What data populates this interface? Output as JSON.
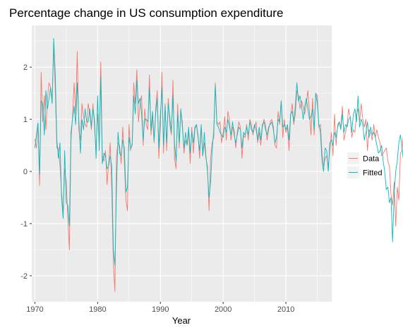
{
  "chart_data": {
    "type": "line",
    "title": "Percentage change in US consumption expenditure",
    "xlabel": "Year",
    "ylabel": "",
    "xlim": [
      1969.5,
      2017.3
    ],
    "ylim": [
      -2.5,
      2.8
    ],
    "x_ticks": [
      1970,
      1980,
      1990,
      2000,
      2010
    ],
    "y_ticks": [
      -2,
      -1,
      0,
      1,
      2
    ],
    "grid": true,
    "legend_position": "right",
    "colors": {
      "panel_background": "#ebebeb",
      "grid": "#ffffff",
      "Data": "#f8766d",
      "Fitted": "#00bfc4"
    },
    "x_start": 1970.0,
    "x_step": 0.25,
    "series": [
      {
        "name": "Data",
        "values": [
          0.62,
          0.45,
          0.87,
          -0.27,
          1.9,
          0.95,
          1.45,
          0.8,
          1.4,
          1.7,
          1.62,
          1.35,
          2.4,
          1.55,
          0.45,
          0.45,
          0.12,
          -0.4,
          -0.8,
          0.05,
          -0.2,
          -0.9,
          -1.5,
          0.6,
          1.05,
          1.7,
          1.1,
          2.3,
          0.8,
          0.6,
          1.3,
          1.05,
          0.9,
          0.85,
          1.3,
          1.1,
          0.8,
          1.3,
          0.85,
          0.4,
          1.1,
          0.55,
          2.1,
          0.3,
          0.2,
          0.4,
          -0.25,
          0.15,
          0.55,
          -0.35,
          -1.75,
          -2.3,
          0.3,
          0.55,
          0.5,
          0.15,
          0.85,
          0.2,
          -0.55,
          -0.75,
          0.9,
          0.4,
          0.55,
          1.7,
          1.3,
          1.95,
          0.95,
          1.3,
          1.45,
          0.5,
          1.2,
          0.9,
          0.8,
          1.85,
          0.7,
          1.05,
          0.55,
          1.2,
          1.55,
          0.25,
          0.85,
          1.9,
          0.35,
          1.3,
          0.4,
          1.4,
          0.9,
          0.7,
          1.75,
          0.25,
          0.05,
          1.3,
          0.45,
          1.15,
          0.95,
          0.35,
          0.6,
          0.5,
          0.75,
          0.15,
          0.85,
          0.35,
          0.8,
          0.9,
          0.7,
          0.25,
          0.85,
          0.3,
          0.55,
          0.25,
          0.1,
          -0.75,
          0.25,
          0.55,
          0.65,
          1.7,
          0.95,
          0.9,
          0.95,
          0.55,
          0.75,
          1.05,
          0.6,
          1.15,
          1.0,
          0.6,
          0.85,
          0.8,
          0.45,
          0.75,
          0.95,
          0.85,
          0.25,
          0.7,
          0.65,
          0.9,
          0.6,
          1.0,
          0.9,
          0.7,
          0.85,
          0.95,
          0.55,
          0.75,
          0.5,
          0.85,
          1.0,
          0.9,
          0.6,
          0.8,
          0.95,
          1.0,
          0.85,
          0.5,
          0.45,
          1.15,
          0.9,
          1.35,
          0.65,
          1.0,
          0.75,
          0.85,
          0.4,
          1.05,
          1.3,
          0.9,
          1.1,
          1.55,
          1.45,
          1.2,
          1.35,
          1.25,
          1.1,
          1.3,
          1.55,
          1.15,
          0.7,
          1.4,
          0.7,
          1.5,
          1.45,
          0.85,
          0.9,
          0.35,
          0.1,
          0.25,
          0.3,
          0.1,
          0.4,
          0.75,
          0.3,
          1.1,
          0.5,
          0.9,
          0.95,
          0.85,
          1.25,
          0.6,
          0.75,
          0.9,
          1.2,
          1.05,
          0.65,
          0.8,
          0.75,
          1.1,
          1.2,
          0.95,
          1.3,
          1.0,
          0.85,
          1.0,
          0.4,
          0.8,
          0.75,
          0.6,
          0.9,
          0.65,
          0.8,
          0.65,
          0.55,
          0.3,
          0.35,
          0.4,
          0.45,
          0.2,
          0.1,
          -0.45,
          -0.65,
          -0.2,
          -1.05,
          -0.3,
          -0.55,
          0.35,
          0.4,
          0.75,
          0.55,
          0.15,
          0.3,
          0.45,
          0.6,
          0.3,
          0.65,
          0.75,
          0.6,
          0.3,
          0.55,
          0.2,
          0.35,
          0.5,
          0.45,
          0.3,
          0.55,
          0.4,
          0.6,
          0.45,
          0.75,
          0.5,
          0.7,
          0.65,
          0.9,
          0.75,
          0.65,
          0.7,
          0.6,
          0.75,
          0.45,
          0.9,
          0.65,
          0.75,
          0.4,
          1.05,
          0.7,
          0.85
        ]
      },
      {
        "name": "Fitted",
        "values": [
          0.45,
          0.72,
          0.93,
          -0.05,
          1.35,
          1.3,
          0.7,
          1.55,
          1.2,
          1.4,
          1.6,
          1.3,
          2.55,
          1.85,
          0.6,
          0.25,
          0.55,
          -0.5,
          -0.9,
          0.4,
          -0.6,
          -0.65,
          -1.05,
          0.75,
          1.0,
          1.25,
          0.9,
          1.7,
          1.0,
          0.35,
          1.0,
          0.8,
          1.2,
          0.95,
          0.95,
          1.2,
          0.85,
          1.2,
          1.0,
          0.25,
          1.45,
          0.4,
          1.8,
          0.15,
          0.35,
          0.3,
          0.05,
          0.1,
          0.3,
          0.1,
          -1.5,
          -1.8,
          -0.35,
          0.75,
          0.35,
          0.3,
          0.6,
          0.45,
          -0.4,
          -0.3,
          0.65,
          0.45,
          0.5,
          1.45,
          1.1,
          1.75,
          1.3,
          1.4,
          1.1,
          0.6,
          1.0,
          1.0,
          0.95,
          1.6,
          0.8,
          1.15,
          0.6,
          1.1,
          1.4,
          0.45,
          1.1,
          1.6,
          0.5,
          1.25,
          0.55,
          1.3,
          1.05,
          0.75,
          1.45,
          0.55,
          0.2,
          1.1,
          0.55,
          1.2,
          0.85,
          0.45,
          0.75,
          0.5,
          0.85,
          0.35,
          0.75,
          0.55,
          0.85,
          0.9,
          0.65,
          0.4,
          0.9,
          0.3,
          0.75,
          0.3,
          0.0,
          -0.5,
          -0.2,
          0.4,
          0.8,
          1.65,
          0.9,
          0.85,
          0.75,
          0.7,
          0.65,
          0.85,
          0.75,
          1.0,
          0.85,
          0.7,
          0.95,
          0.7,
          0.55,
          0.7,
          0.85,
          0.8,
          0.45,
          0.75,
          0.7,
          0.85,
          0.7,
          0.95,
          0.8,
          0.75,
          0.9,
          0.8,
          0.6,
          0.85,
          0.6,
          0.9,
          0.95,
          0.8,
          0.7,
          0.85,
          0.9,
          0.95,
          0.8,
          0.55,
          0.65,
          1.0,
          0.95,
          1.35,
          0.85,
          0.9,
          0.8,
          0.9,
          0.6,
          1.1,
          1.15,
          0.95,
          1.25,
          1.7,
          1.35,
          1.45,
          1.25,
          1.0,
          1.25,
          1.4,
          1.2,
          1.0,
          1.05,
          1.2,
          0.8,
          1.5,
          1.3,
          0.9,
          0.75,
          0.2,
          0.0,
          0.45,
          0.4,
          0.0,
          0.55,
          0.6,
          0.5,
          0.75,
          0.65,
          0.85,
          0.95,
          0.8,
          1.1,
          0.75,
          0.9,
          0.85,
          1.0,
          1.05,
          0.75,
          1.1,
          1.2,
          0.95,
          1.45,
          0.85,
          1.0,
          0.9,
          0.6,
          0.75,
          0.95,
          0.65,
          0.85,
          0.7,
          0.75,
          0.65,
          0.5,
          0.35,
          0.4,
          0.5,
          0.2,
          0.0,
          -0.35,
          -0.3,
          -0.6,
          -0.5,
          -1.35,
          -0.45,
          0.0,
          0.2,
          0.55,
          0.7,
          0.45,
          0.2,
          0.35,
          0.55,
          0.8,
          0.45,
          0.7,
          0.9,
          0.45,
          0.6,
          0.4,
          0.5,
          0.65,
          0.5,
          0.45,
          0.65,
          0.55,
          0.75,
          0.5,
          0.9,
          0.7,
          1.05,
          0.8,
          1.1,
          0.75,
          0.9,
          1.15,
          0.75,
          0.8,
          0.65,
          1.2,
          0.75,
          0.7,
          0.6,
          0.85,
          0.75,
          0.9
        ]
      }
    ]
  }
}
